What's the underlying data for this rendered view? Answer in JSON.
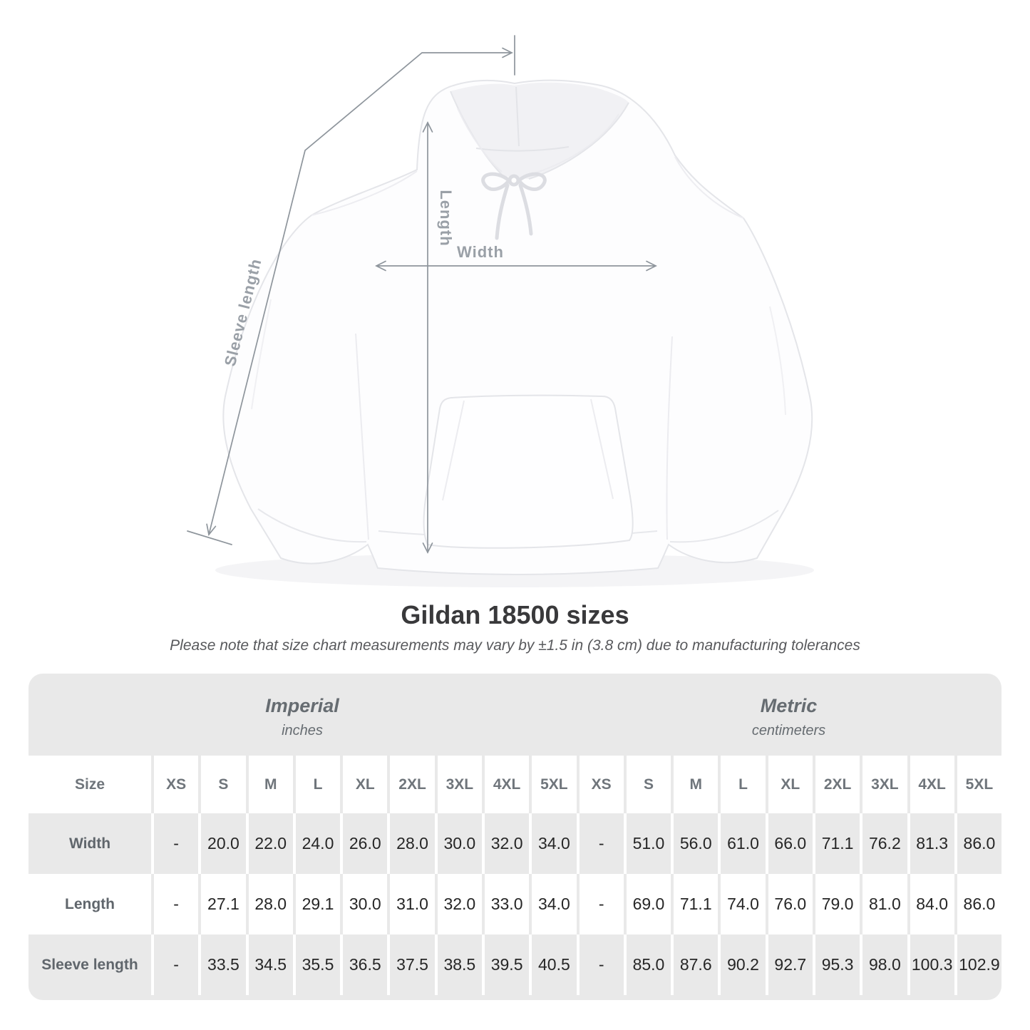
{
  "diagram": {
    "length_label": "Length",
    "width_label": "Width",
    "sleeve_length_label": "Sleeve length"
  },
  "heading": {
    "title": "Gildan 18500 sizes",
    "note": "Please note that size chart measurements may vary by ±1.5 in (3.8 cm) due to manufacturing tolerances"
  },
  "table": {
    "groups": [
      {
        "title": "Imperial",
        "subtitle": "inches"
      },
      {
        "title": "Metric",
        "subtitle": "centimeters"
      }
    ],
    "size_column_header": "Size",
    "sizes": [
      "XS",
      "S",
      "M",
      "L",
      "XL",
      "2XL",
      "3XL",
      "4XL",
      "5XL"
    ],
    "rows": [
      {
        "label": "Width",
        "imperial": [
          "-",
          "20.0",
          "22.0",
          "24.0",
          "26.0",
          "28.0",
          "30.0",
          "32.0",
          "34.0"
        ],
        "metric": [
          "-",
          "51.0",
          "56.0",
          "61.0",
          "66.0",
          "71.1",
          "76.2",
          "81.3",
          "86.0"
        ]
      },
      {
        "label": "Length",
        "imperial": [
          "-",
          "27.1",
          "28.0",
          "29.1",
          "30.0",
          "31.0",
          "32.0",
          "33.0",
          "34.0"
        ],
        "metric": [
          "-",
          "69.0",
          "71.1",
          "74.0",
          "76.0",
          "79.0",
          "81.0",
          "84.0",
          "86.0"
        ]
      },
      {
        "label": "Sleeve length",
        "imperial": [
          "-",
          "33.5",
          "34.5",
          "35.5",
          "36.5",
          "37.5",
          "38.5",
          "39.5",
          "40.5"
        ],
        "metric": [
          "-",
          "85.0",
          "87.6",
          "90.2",
          "92.7",
          "95.3",
          "98.0",
          "100.3",
          "102.9"
        ]
      }
    ]
  },
  "colors": {
    "table_gray": "#e9e9e9",
    "dimension_line": "#8e959c",
    "dimension_label": "#9aa0a7",
    "header_text": "#6f757b",
    "value_text": "#262626"
  }
}
